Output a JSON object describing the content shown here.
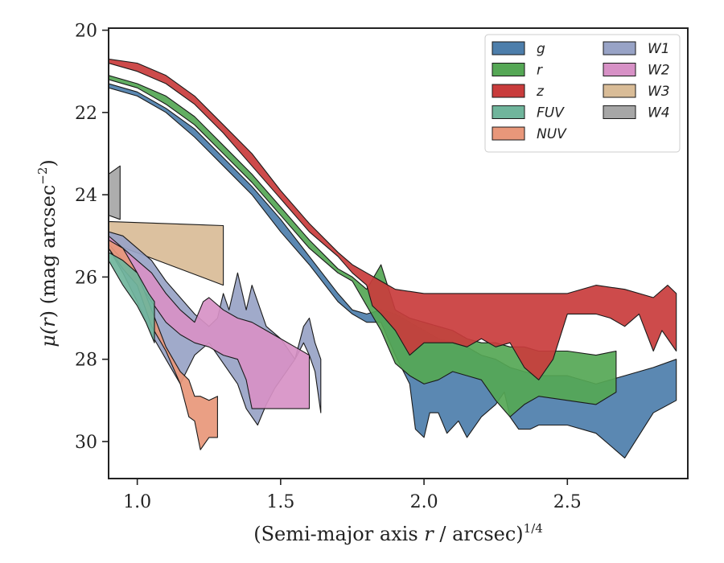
{
  "chart_data": {
    "type": "area",
    "title": "",
    "xlabel": "(Semi-major axis r / arcsec)^{1/4}",
    "ylabel": "μ(r) (mag arcsec^{-2})",
    "xlim": [
      0.9,
      2.92
    ],
    "ylim": [
      30.9,
      19.95
    ],
    "y_inverted": true,
    "grid": false,
    "legend_position": "top-right",
    "legend_columns": 2,
    "x_ticks": [
      1.0,
      1.5,
      2.0,
      2.5
    ],
    "x_tick_labels": [
      "1.0",
      "1.5",
      "2.0",
      "2.5"
    ],
    "y_ticks": [
      20,
      22,
      24,
      26,
      28,
      30
    ],
    "y_tick_labels": [
      "20",
      "22",
      "24",
      "26",
      "28",
      "30"
    ],
    "xlabel_parts": {
      "before": "(Semi-major axis ",
      "var": "r",
      "after": " / arcsec)",
      "sup": "1/4"
    },
    "ylabel_parts": {
      "pre": "μ(",
      "var": "r",
      "mid": ") (mag arcsec",
      "sup": "−2",
      "post": ")"
    },
    "series": [
      {
        "name": "W4",
        "color": "#a6a6a6",
        "x": [
          0.9,
          0.94,
          0.94,
          0.9
        ],
        "y": [
          23.5,
          23.3,
          24.6,
          24.5
        ],
        "polygon": true
      },
      {
        "name": "W3",
        "color": "#d9bc97",
        "x": [
          0.9,
          1.3,
          1.3,
          0.9
        ],
        "y": [
          24.65,
          24.75,
          26.2,
          25.15
        ],
        "polygon": true
      },
      {
        "name": "W1",
        "color": "#98a3c6",
        "x": [
          0.9,
          0.95,
          1.0,
          1.05,
          1.1,
          1.15,
          1.2,
          1.25,
          1.28,
          1.3,
          1.32,
          1.35,
          1.38,
          1.4,
          1.42,
          1.45,
          1.5,
          1.55,
          1.58,
          1.6,
          1.62,
          1.64,
          1.64,
          1.62,
          1.6,
          1.58,
          1.55,
          1.52,
          1.48,
          1.45,
          1.42,
          1.38,
          1.35,
          1.3,
          1.25,
          1.2,
          1.15,
          1.1,
          1.05,
          1.0,
          0.95,
          0.9
        ],
        "y_upper": [
          24.9,
          25.0,
          25.3,
          25.6,
          26.1,
          26.5,
          26.9,
          27.2,
          27.0,
          26.4,
          26.8,
          25.9,
          26.8,
          26.2,
          26.6,
          27.2,
          27.5,
          28.0,
          27.2,
          27.0,
          27.6,
          28.0,
          29.3,
          28.3,
          27.9,
          27.6,
          28.0,
          28.3,
          28.7,
          29.1,
          29.6,
          29.2,
          28.6,
          28.1,
          27.6,
          27.9,
          28.6,
          28.0,
          27.4,
          26.6,
          25.9,
          25.3
        ],
        "polygon": false
      },
      {
        "name": "W2",
        "color": "#d791c6",
        "x": [
          0.9,
          0.95,
          1.0,
          1.05,
          1.1,
          1.15,
          1.2,
          1.23,
          1.25,
          1.3,
          1.35,
          1.4,
          1.45,
          1.5,
          1.55,
          1.6,
          1.6,
          1.55,
          1.5,
          1.45,
          1.4,
          1.38,
          1.35,
          1.3,
          1.25,
          1.2,
          1.15,
          1.1,
          1.05,
          1.0,
          0.95,
          0.9
        ],
        "y_upper": [
          25.0,
          25.3,
          25.6,
          25.9,
          26.4,
          26.8,
          27.1,
          26.6,
          26.5,
          26.8,
          27.0,
          27.1,
          27.3,
          27.5,
          27.7,
          27.9,
          29.2,
          29.2,
          29.2,
          29.2,
          29.2,
          28.5,
          28.0,
          27.9,
          27.7,
          27.6,
          27.4,
          27.1,
          26.6,
          26.1,
          25.6,
          25.2
        ],
        "polygon": false
      },
      {
        "name": "NUV",
        "color": "#e8977a",
        "x": [
          0.9,
          0.95,
          1.0,
          1.05,
          1.1,
          1.15,
          1.18,
          1.2,
          1.22,
          1.25,
          1.28,
          1.28,
          1.25,
          1.22,
          1.2,
          1.18,
          1.15,
          1.1,
          1.05,
          1.0,
          0.95,
          0.9
        ],
        "y_upper": [
          25.1,
          25.3,
          25.9,
          26.8,
          27.7,
          28.3,
          28.5,
          28.9,
          28.9,
          29.0,
          28.9,
          29.9,
          29.9,
          30.2,
          29.5,
          29.4,
          28.6,
          27.8,
          27.2,
          26.2,
          25.8,
          25.3
        ],
        "polygon": false
      },
      {
        "name": "FUV",
        "color": "#70b59c",
        "x": [
          0.9,
          0.95,
          1.0,
          1.04,
          1.06,
          1.06,
          1.03,
          1.0,
          0.95,
          0.9
        ],
        "y_upper": [
          25.4,
          25.6,
          25.9,
          26.4,
          26.6,
          27.6,
          27.1,
          26.7,
          26.2,
          25.6
        ],
        "polygon": false
      },
      {
        "name": "g",
        "color": "#4d7eab",
        "x": [
          0.9,
          1.0,
          1.1,
          1.2,
          1.3,
          1.4,
          1.5,
          1.6,
          1.7,
          1.75,
          1.8,
          1.85,
          1.9,
          1.95,
          2.0,
          2.05,
          2.1,
          2.15,
          2.2,
          2.25,
          2.3,
          2.35,
          2.4,
          2.5,
          2.6,
          2.7,
          2.8,
          2.88,
          2.88,
          2.8,
          2.7,
          2.6,
          2.5,
          2.4,
          2.37,
          2.33,
          2.3,
          2.28,
          2.25,
          2.2,
          2.15,
          2.12,
          2.08,
          2.05,
          2.02,
          2.0,
          1.97,
          1.95,
          1.9,
          1.85,
          1.8,
          1.75,
          1.7,
          1.6,
          1.5,
          1.4,
          1.3,
          1.2,
          1.1,
          1.0,
          0.9
        ],
        "y_upper": [
          21.3,
          21.5,
          21.9,
          22.4,
          23.1,
          23.8,
          24.6,
          25.5,
          26.4,
          26.8,
          26.9,
          26.8,
          26.9,
          27.1,
          27.3,
          27.5,
          27.6,
          27.7,
          27.9,
          28.0,
          28.2,
          28.3,
          28.4,
          28.4,
          28.6,
          28.4,
          28.2,
          28.0,
          29.0,
          29.3,
          30.4,
          29.8,
          29.6,
          29.6,
          29.7,
          29.7,
          29.4,
          28.8,
          29.1,
          29.4,
          29.9,
          29.5,
          29.8,
          29.3,
          29.3,
          29.9,
          29.7,
          28.6,
          27.9,
          27.1,
          27.1,
          26.9,
          26.6,
          25.7,
          24.9,
          24.0,
          23.3,
          22.6,
          22.0,
          21.6,
          21.4
        ],
        "polygon": false
      },
      {
        "name": "r",
        "color": "#55a755",
        "x": [
          0.9,
          1.0,
          1.1,
          1.2,
          1.3,
          1.4,
          1.5,
          1.6,
          1.7,
          1.75,
          1.8,
          1.85,
          1.9,
          1.95,
          2.0,
          2.05,
          2.1,
          2.15,
          2.2,
          2.25,
          2.3,
          2.35,
          2.4,
          2.5,
          2.6,
          2.67,
          2.67,
          2.6,
          2.5,
          2.4,
          2.35,
          2.3,
          2.25,
          2.2,
          2.15,
          2.1,
          2.05,
          2.0,
          1.95,
          1.9,
          1.85,
          1.8,
          1.75,
          1.7,
          1.6,
          1.5,
          1.4,
          1.3,
          1.2,
          1.1,
          1.0,
          0.9
        ],
        "y_upper": [
          21.1,
          21.3,
          21.6,
          22.1,
          22.8,
          23.5,
          24.3,
          25.1,
          25.8,
          26.0,
          26.3,
          25.7,
          26.8,
          27.0,
          27.1,
          27.2,
          27.3,
          27.5,
          27.6,
          27.6,
          27.7,
          27.7,
          27.8,
          27.8,
          27.9,
          27.8,
          28.8,
          29.1,
          29.0,
          28.9,
          29.1,
          29.4,
          29.0,
          28.5,
          28.4,
          28.3,
          28.5,
          28.6,
          28.4,
          28.1,
          27.3,
          26.7,
          26.1,
          25.9,
          25.3,
          24.5,
          23.7,
          23.0,
          22.3,
          21.8,
          21.4,
          21.2
        ],
        "polygon": false
      },
      {
        "name": "z",
        "color": "#c93c3c",
        "x": [
          0.9,
          1.0,
          1.1,
          1.2,
          1.3,
          1.4,
          1.5,
          1.6,
          1.7,
          1.75,
          1.8,
          1.85,
          1.9,
          2.0,
          2.1,
          2.2,
          2.3,
          2.4,
          2.5,
          2.6,
          2.7,
          2.8,
          2.85,
          2.88,
          2.88,
          2.83,
          2.8,
          2.75,
          2.7,
          2.65,
          2.6,
          2.5,
          2.45,
          2.4,
          2.35,
          2.3,
          2.25,
          2.2,
          2.15,
          2.1,
          2.0,
          1.95,
          1.9,
          1.85,
          1.82,
          1.8,
          1.75,
          1.7,
          1.6,
          1.5,
          1.4,
          1.3,
          1.2,
          1.1,
          1.0,
          0.9
        ],
        "y_upper": [
          20.7,
          20.8,
          21.1,
          21.6,
          22.3,
          23.0,
          23.9,
          24.7,
          25.4,
          25.7,
          25.9,
          26.1,
          26.3,
          26.4,
          26.4,
          26.4,
          26.4,
          26.4,
          26.4,
          26.2,
          26.3,
          26.5,
          26.2,
          26.4,
          27.8,
          27.3,
          27.8,
          26.9,
          27.2,
          27.0,
          26.9,
          26.9,
          28.0,
          28.5,
          28.2,
          27.6,
          27.7,
          27.5,
          27.7,
          27.6,
          27.6,
          27.9,
          27.3,
          26.9,
          26.7,
          26.2,
          25.9,
          25.5,
          24.9,
          24.1,
          23.3,
          22.5,
          21.8,
          21.3,
          21.0,
          20.8
        ],
        "polygon": false
      }
    ],
    "legend_order": [
      {
        "name": "g",
        "color": "#4d7eab"
      },
      {
        "name": "r",
        "color": "#55a755"
      },
      {
        "name": "z",
        "color": "#c93c3c"
      },
      {
        "name": "FUV",
        "color": "#70b59c"
      },
      {
        "name": "NUV",
        "color": "#e8977a"
      },
      {
        "name": "W1",
        "color": "#98a3c6"
      },
      {
        "name": "W2",
        "color": "#d791c6"
      },
      {
        "name": "W3",
        "color": "#d9bc97"
      },
      {
        "name": "W4",
        "color": "#a6a6a6"
      }
    ]
  }
}
